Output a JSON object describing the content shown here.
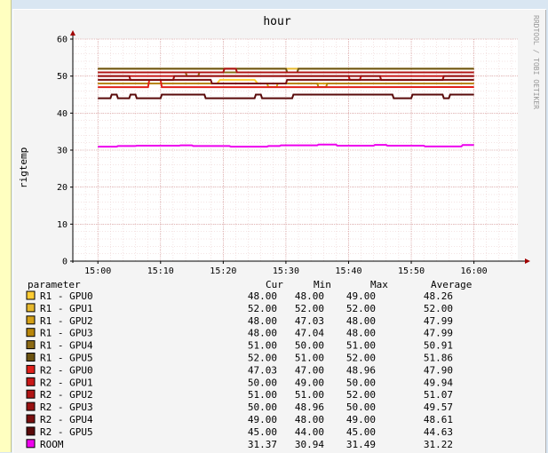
{
  "chart_data": {
    "type": "line",
    "title": "hour",
    "ylabel": "rigtemp",
    "watermark": "RRDTOOL / TOBI OETIKER",
    "ylim": [
      0,
      60
    ],
    "yticks": [
      0,
      10,
      20,
      30,
      40,
      50,
      60
    ],
    "xlim": [
      "14:56",
      "16:07"
    ],
    "xticks": [
      "15:00",
      "15:10",
      "15:20",
      "15:30",
      "15:40",
      "15:50",
      "16:00"
    ],
    "grid": true,
    "legend": {
      "header": [
        "parameter",
        "Cur",
        "Min",
        "Max",
        "Average"
      ],
      "placement": "bottom"
    },
    "series": [
      {
        "name": "R1 - GPU0",
        "color": "#ffcc33",
        "cur": "48.00",
        "min": "48.00",
        "max": "49.00",
        "avg": "48.26",
        "values": [
          [
            0,
            48
          ],
          [
            19,
            48
          ],
          [
            19.5,
            49
          ],
          [
            25,
            49
          ],
          [
            25.5,
            48
          ],
          [
            60,
            48
          ]
        ]
      },
      {
        "name": "R1 - GPU1",
        "color": "#e6b82e",
        "cur": "52.00",
        "min": "52.00",
        "max": "52.00",
        "avg": "52.00",
        "values": [
          [
            0,
            52
          ],
          [
            60,
            52
          ]
        ]
      },
      {
        "name": "R1 - GPU2",
        "color": "#d4a017",
        "cur": "48.00",
        "min": "47.03",
        "max": "48.00",
        "avg": "47.99",
        "values": [
          [
            0,
            48
          ],
          [
            27,
            48
          ],
          [
            27.2,
            47.03
          ],
          [
            28.5,
            47.03
          ],
          [
            28.7,
            48
          ],
          [
            60,
            48
          ]
        ]
      },
      {
        "name": "R1 - GPU3",
        "color": "#b8860b",
        "cur": "48.00",
        "min": "47.04",
        "max": "48.00",
        "avg": "47.99",
        "values": [
          [
            0,
            48
          ],
          [
            35,
            48
          ],
          [
            35.2,
            47.04
          ],
          [
            36.4,
            47.04
          ],
          [
            36.6,
            48
          ],
          [
            60,
            48
          ]
        ]
      },
      {
        "name": "R1 - GPU4",
        "color": "#8b6914",
        "cur": "51.00",
        "min": "50.00",
        "max": "51.00",
        "avg": "50.91",
        "values": [
          [
            0,
            51
          ],
          [
            14,
            51
          ],
          [
            14.2,
            50
          ],
          [
            16,
            50
          ],
          [
            16.2,
            51
          ],
          [
            60,
            51
          ]
        ]
      },
      {
        "name": "R1 - GPU5",
        "color": "#6b5210",
        "cur": "52.00",
        "min": "51.00",
        "max": "52.00",
        "avg": "51.86",
        "values": [
          [
            0,
            52
          ],
          [
            30,
            52
          ],
          [
            30.2,
            51
          ],
          [
            31.8,
            51
          ],
          [
            32,
            52
          ],
          [
            60,
            52
          ]
        ]
      },
      {
        "name": "R2 - GPU0",
        "color": "#e0201a",
        "cur": "47.03",
        "min": "47.00",
        "max": "48.96",
        "avg": "47.90",
        "values": [
          [
            0,
            47
          ],
          [
            8,
            47
          ],
          [
            8.2,
            48.96
          ],
          [
            10,
            48.96
          ],
          [
            10.2,
            47
          ],
          [
            60,
            47.03
          ]
        ]
      },
      {
        "name": "R2 - GPU1",
        "color": "#c81818",
        "cur": "50.00",
        "min": "49.00",
        "max": "50.00",
        "avg": "49.94",
        "values": [
          [
            0,
            50
          ],
          [
            40,
            50
          ],
          [
            40.2,
            49
          ],
          [
            41.8,
            49
          ],
          [
            42,
            50
          ],
          [
            60,
            50
          ]
        ]
      },
      {
        "name": "R2 - GPU2",
        "color": "#b01515",
        "cur": "51.00",
        "min": "51.00",
        "max": "52.00",
        "avg": "51.07",
        "values": [
          [
            0,
            51
          ],
          [
            20,
            51
          ],
          [
            20.2,
            52
          ],
          [
            22,
            52
          ],
          [
            22.2,
            51
          ],
          [
            60,
            51
          ]
        ]
      },
      {
        "name": "R2 - GPU3",
        "color": "#981212",
        "cur": "50.00",
        "min": "48.96",
        "max": "50.00",
        "avg": "49.57",
        "values": [
          [
            0,
            50
          ],
          [
            5,
            50
          ],
          [
            5.2,
            48.96
          ],
          [
            12,
            48.96
          ],
          [
            12.2,
            50
          ],
          [
            45,
            50
          ],
          [
            45.2,
            48.96
          ],
          [
            55,
            48.96
          ],
          [
            55.2,
            50
          ],
          [
            60,
            50
          ]
        ]
      },
      {
        "name": "R2 - GPU4",
        "color": "#7a0f0f",
        "cur": "49.00",
        "min": "48.00",
        "max": "49.00",
        "avg": "48.61",
        "values": [
          [
            0,
            49
          ],
          [
            18,
            49
          ],
          [
            18.2,
            48
          ],
          [
            30,
            48
          ],
          [
            30.2,
            49
          ],
          [
            60,
            49
          ]
        ]
      },
      {
        "name": "R2 - GPU5",
        "color": "#5a0a0a",
        "cur": "45.00",
        "min": "44.00",
        "max": "45.00",
        "avg": "44.63",
        "values": [
          [
            0,
            44
          ],
          [
            2,
            44
          ],
          [
            2.2,
            45
          ],
          [
            3,
            45
          ],
          [
            3.2,
            44
          ],
          [
            5,
            44
          ],
          [
            5.2,
            45
          ],
          [
            6,
            45
          ],
          [
            6.2,
            44
          ],
          [
            10,
            44
          ],
          [
            10.2,
            45
          ],
          [
            17,
            45
          ],
          [
            17.2,
            44
          ],
          [
            25,
            44
          ],
          [
            25.2,
            45
          ],
          [
            26,
            45
          ],
          [
            26.2,
            44
          ],
          [
            31,
            44
          ],
          [
            31.2,
            45
          ],
          [
            47,
            45
          ],
          [
            47.2,
            44
          ],
          [
            50,
            44
          ],
          [
            50.2,
            45
          ],
          [
            55,
            45
          ],
          [
            55.2,
            44
          ],
          [
            56,
            44
          ],
          [
            56.2,
            45
          ],
          [
            60,
            45
          ]
        ]
      },
      {
        "name": "ROOM",
        "color": "#ee00ee",
        "cur": "31.37",
        "min": "30.94",
        "max": "31.49",
        "avg": "31.22",
        "values": [
          [
            0,
            30.94
          ],
          [
            3,
            30.94
          ],
          [
            3.2,
            31.1
          ],
          [
            6,
            31.1
          ],
          [
            6.2,
            31.2
          ],
          [
            13,
            31.2
          ],
          [
            13.2,
            31.3
          ],
          [
            15,
            31.3
          ],
          [
            15.2,
            31.1
          ],
          [
            21,
            31.1
          ],
          [
            21.2,
            30.94
          ],
          [
            27,
            30.94
          ],
          [
            27.2,
            31.1
          ],
          [
            29,
            31.1
          ],
          [
            29.2,
            31.3
          ],
          [
            35,
            31.3
          ],
          [
            35.2,
            31.49
          ],
          [
            38,
            31.49
          ],
          [
            38.2,
            31.2
          ],
          [
            44,
            31.2
          ],
          [
            44.2,
            31.4
          ],
          [
            46,
            31.4
          ],
          [
            46.2,
            31.2
          ],
          [
            52,
            31.2
          ],
          [
            52.2,
            31.0
          ],
          [
            58,
            31.0
          ],
          [
            58.2,
            31.37
          ],
          [
            60,
            31.37
          ]
        ]
      }
    ]
  }
}
